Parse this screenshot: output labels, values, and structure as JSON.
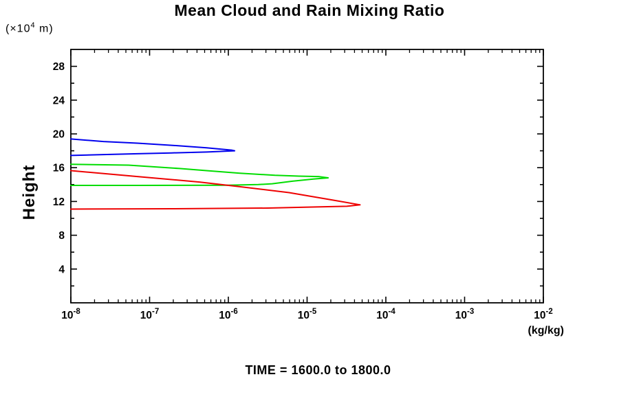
{
  "page": {
    "title": "Mean Cloud and Rain Mixing Ratio",
    "caption": "TIME = 1600.0 to 1800.0"
  },
  "chart_data": {
    "type": "line",
    "title": "Mean Cloud and Rain Mixing Ratio",
    "caption": "TIME = 1600.0 to 1800.0",
    "x_scale": "log",
    "xlim": [
      1e-08,
      0.01
    ],
    "x_tick_base": "10",
    "x_ticks_exponents": [
      -8,
      -7,
      -6,
      -5,
      -4,
      -3,
      -2
    ],
    "x_minor_ticks": true,
    "x_unit": "(kg/kg)",
    "ylabel": "Height",
    "y_unit": {
      "prefix": "(×10",
      "exp": "4",
      "suffix": " m)"
    },
    "ylim": [
      0,
      30
    ],
    "y_ticks": [
      4,
      8,
      12,
      16,
      20,
      24,
      28
    ],
    "y_minor_step": 2,
    "grid": false,
    "legend": "none",
    "axis_color": "#000000",
    "series": [
      {
        "name": "blue-curve",
        "color": "#0000ee",
        "points": [
          [
            1e-08,
            19.4
          ],
          [
            2.6e-08,
            19.1
          ],
          [
            7e-08,
            18.9
          ],
          [
            1.9e-07,
            18.65
          ],
          [
            5.3e-07,
            18.35
          ],
          [
            1.1e-06,
            18.08
          ],
          [
            1.2e-06,
            18.0
          ],
          [
            5.3e-07,
            17.85
          ],
          [
            1.9e-07,
            17.75
          ],
          [
            7e-08,
            17.65
          ],
          [
            2.6e-08,
            17.55
          ],
          [
            1e-08,
            17.45
          ]
        ]
      },
      {
        "name": "green-curve",
        "color": "#00dd00",
        "points": [
          [
            1e-08,
            16.4
          ],
          [
            5.4e-08,
            16.3
          ],
          [
            2.4e-07,
            15.9
          ],
          [
            5.3e-07,
            15.65
          ],
          [
            1.4e-06,
            15.35
          ],
          [
            3.9e-06,
            15.1
          ],
          [
            7.9e-06,
            15.0
          ],
          [
            1.4e-05,
            14.95
          ],
          [
            1.85e-05,
            14.8
          ],
          [
            1.2e-05,
            14.65
          ],
          [
            6.5e-06,
            14.4
          ],
          [
            3.6e-06,
            14.1
          ],
          [
            2.4e-06,
            14.0
          ],
          [
            9.6e-07,
            13.93
          ],
          [
            7e-08,
            13.9
          ],
          [
            1e-08,
            13.9
          ]
        ]
      },
      {
        "name": "red-curve",
        "color": "#ee0000",
        "points": [
          [
            1e-08,
            15.65
          ],
          [
            7e-08,
            14.95
          ],
          [
            4.3e-07,
            14.3
          ],
          [
            1.4e-06,
            13.75
          ],
          [
            5.9e-06,
            13.05
          ],
          [
            2e-05,
            12.2
          ],
          [
            4.7e-05,
            11.6
          ],
          [
            3.2e-05,
            11.43
          ],
          [
            1.3e-05,
            11.35
          ],
          [
            3.2e-06,
            11.22
          ],
          [
            1.9e-07,
            11.14
          ],
          [
            1e-08,
            11.1
          ]
        ]
      }
    ]
  }
}
